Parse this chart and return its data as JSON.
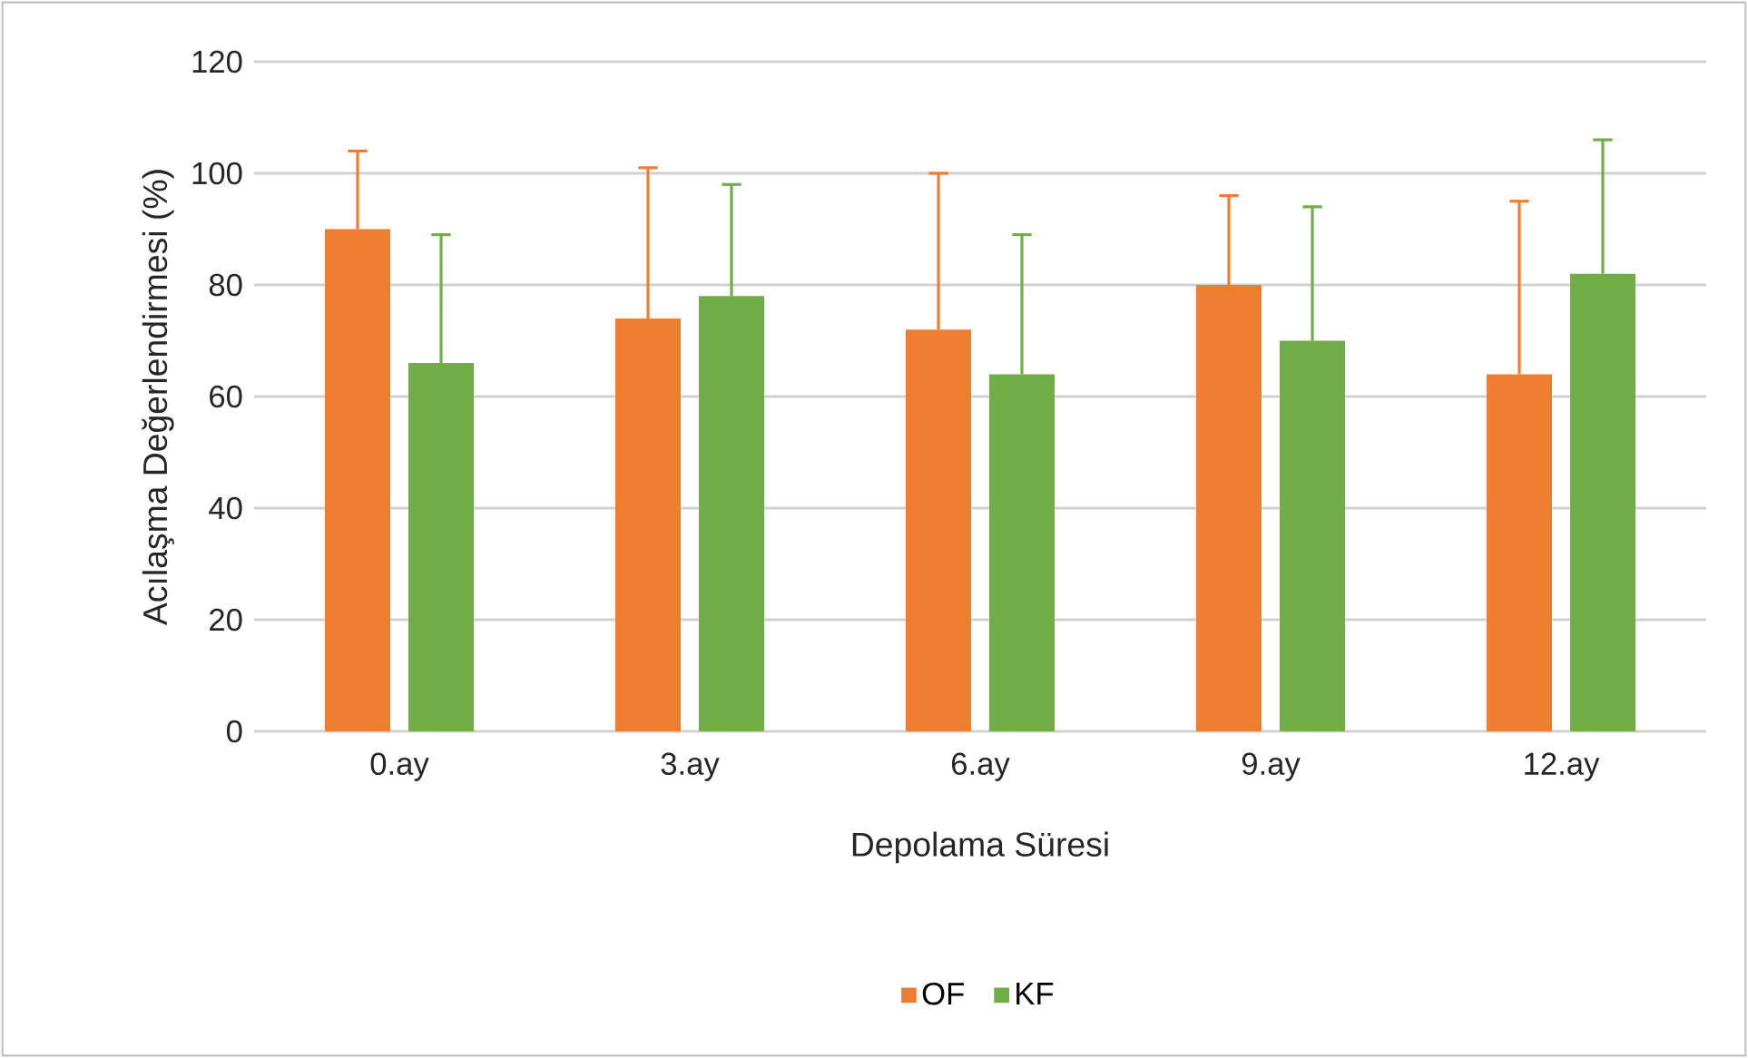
{
  "chart_data": {
    "type": "bar",
    "xlabel": "Depolama Süresi",
    "ylabel": "Acılaşma Değerlendirmesi (%)",
    "categories": [
      "0.ay",
      "3.ay",
      "6.ay",
      "9.ay",
      "12.ay"
    ],
    "series": [
      {
        "name": "OF",
        "color": "#ed7d31",
        "values": [
          90,
          74,
          72,
          80,
          64
        ],
        "errors": [
          [
            90,
            104
          ],
          [
            74,
            101
          ],
          [
            72,
            100
          ],
          [
            80,
            96
          ],
          [
            64,
            95
          ]
        ]
      },
      {
        "name": "KF",
        "color": "#70ad47",
        "values": [
          66,
          78,
          64,
          70,
          82
        ],
        "errors": [
          [
            66,
            89
          ],
          [
            78,
            98
          ],
          [
            64,
            89
          ],
          [
            70,
            94
          ],
          [
            82,
            106
          ]
        ]
      }
    ],
    "ylim": [
      0,
      120
    ],
    "yticks": [
      0,
      20,
      40,
      60,
      80,
      100,
      120
    ],
    "grid": "y",
    "legend": "bottom"
  }
}
